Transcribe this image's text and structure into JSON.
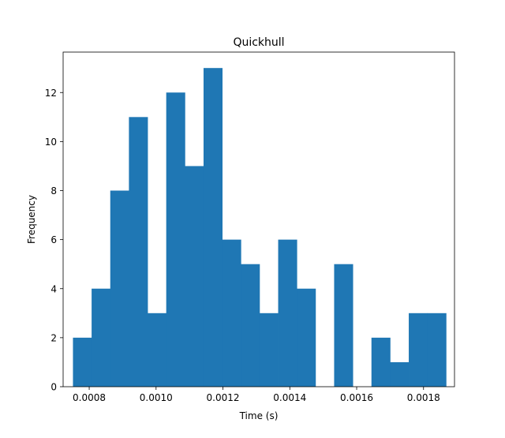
{
  "chart_data": {
    "type": "bar",
    "title": "Quickhull",
    "xlabel": "Time (s)",
    "ylabel": "Frequency",
    "x_range": [
      0.000722,
      0.0018926
    ],
    "y_range": [
      0,
      13.65
    ],
    "x_ticks": [
      {
        "value": 0.0008,
        "label": "0.0008"
      },
      {
        "value": 0.001,
        "label": "0.0010"
      },
      {
        "value": 0.0012,
        "label": "0.0012"
      },
      {
        "value": 0.0014,
        "label": "0.0014"
      },
      {
        "value": 0.0016,
        "label": "0.0016"
      },
      {
        "value": 0.0018,
        "label": "0.0018"
      }
    ],
    "y_ticks": [
      {
        "value": 0,
        "label": "0"
      },
      {
        "value": 2,
        "label": "2"
      },
      {
        "value": 4,
        "label": "4"
      },
      {
        "value": 6,
        "label": "6"
      },
      {
        "value": 8,
        "label": "8"
      },
      {
        "value": 10,
        "label": "10"
      },
      {
        "value": 12,
        "label": "12"
      }
    ],
    "bin_start": 0.0007514,
    "bin_width": 5.58e-05,
    "values": [
      2,
      4,
      8,
      11,
      3,
      12,
      9,
      13,
      6,
      5,
      3,
      6,
      4,
      0,
      5,
      0,
      2,
      1,
      3,
      3
    ],
    "bar_color": "#1f77b4",
    "grid": false,
    "legend": "none"
  }
}
